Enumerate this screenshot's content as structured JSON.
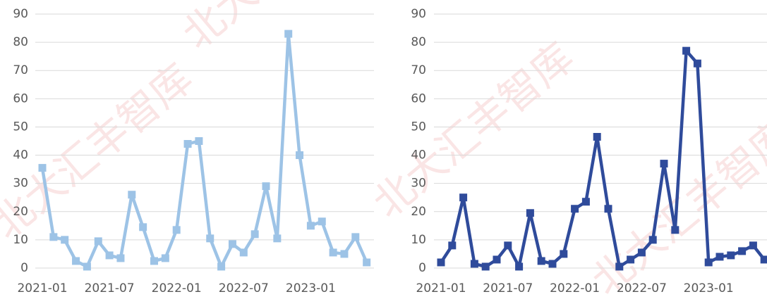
{
  "watermark": "北大汇丰智库",
  "chart_data": [
    {
      "type": "line",
      "categories": [
        "2021-01",
        null,
        null,
        null,
        null,
        null,
        "2021-07",
        null,
        null,
        null,
        null,
        null,
        "2022-01",
        null,
        null,
        null,
        null,
        null,
        "2022-07",
        null,
        null,
        null,
        null,
        null,
        "2023-01",
        null,
        null,
        null,
        null,
        null
      ],
      "series": [
        {
          "color": "#9dc3e6",
          "values": [
            35.5,
            11,
            10,
            2.5,
            0.5,
            9.5,
            4.5,
            3.5,
            26,
            14.5,
            2.5,
            3.5,
            13.5,
            44,
            45,
            10.5,
            0.5,
            8.5,
            5.5,
            12,
            29,
            10.5,
            83,
            40,
            15,
            16.5,
            5.5,
            5,
            11,
            2
          ]
        }
      ],
      "ylim": [
        0,
        90
      ],
      "yticks": [
        0,
        10,
        20,
        30,
        40,
        50,
        60,
        70,
        80,
        90
      ],
      "grid": true
    },
    {
      "type": "line",
      "categories": [
        "2021-01",
        null,
        null,
        null,
        null,
        null,
        "2021-07",
        null,
        null,
        null,
        null,
        null,
        "2022-01",
        null,
        null,
        null,
        null,
        null,
        "2022-07",
        null,
        null,
        null,
        null,
        null,
        "2023-01",
        null,
        null,
        null,
        null,
        null
      ],
      "series": [
        {
          "color": "#2f4b9b",
          "values": [
            2,
            8,
            25,
            1.5,
            0.5,
            3,
            8,
            0.5,
            19.5,
            2.5,
            1.5,
            5,
            21,
            23.5,
            46.5,
            21,
            0.5,
            3,
            5.5,
            10,
            37,
            13.5,
            77,
            72.5,
            2,
            4,
            4.5,
            6,
            8,
            3
          ]
        }
      ],
      "ylim": [
        0,
        90
      ],
      "yticks": [
        0,
        10,
        20,
        30,
        40,
        50,
        60,
        70,
        80,
        90
      ],
      "grid": true
    }
  ]
}
